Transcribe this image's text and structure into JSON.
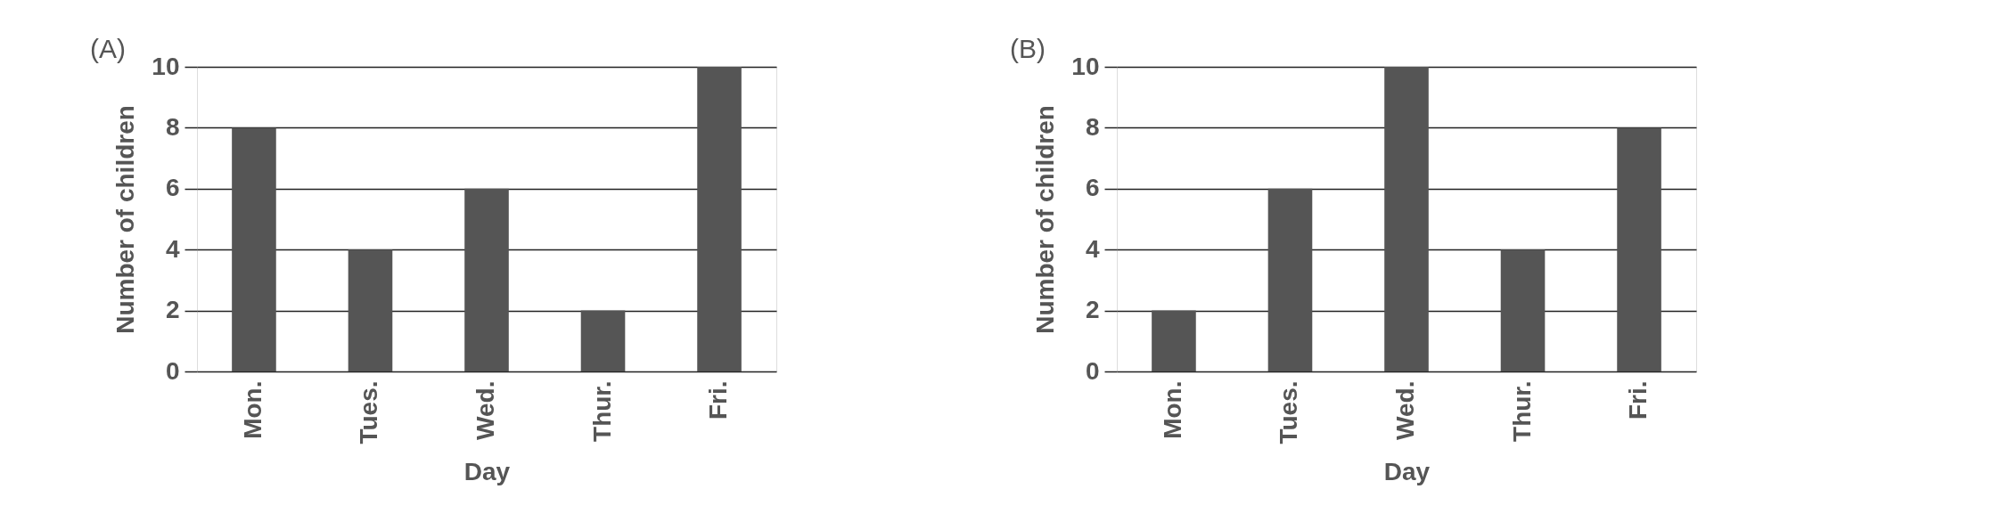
{
  "chart_data": [
    {
      "type": "bar",
      "title": "(A)",
      "xlabel": "Day",
      "ylabel": "Number of children",
      "categories": [
        "Mon.",
        "Tues.",
        "Wed.",
        "Thur.",
        "Fri."
      ],
      "values": [
        8,
        4,
        6,
        2,
        10
      ],
      "color": "#555555",
      "ylim": [
        0,
        10
      ],
      "yticks": [
        0,
        2,
        4,
        6,
        8,
        10
      ],
      "grid": "y"
    },
    {
      "type": "bar",
      "title": "(B)",
      "xlabel": "Day",
      "ylabel": "Number of children",
      "categories": [
        "Mon.",
        "Tues.",
        "Wed.",
        "Thur.",
        "Fri."
      ],
      "values": [
        2,
        6,
        10,
        4,
        8
      ],
      "color": "#555555",
      "ylim": [
        0,
        10
      ],
      "yticks": [
        0,
        2,
        4,
        6,
        8,
        10
      ],
      "grid": "y"
    }
  ]
}
